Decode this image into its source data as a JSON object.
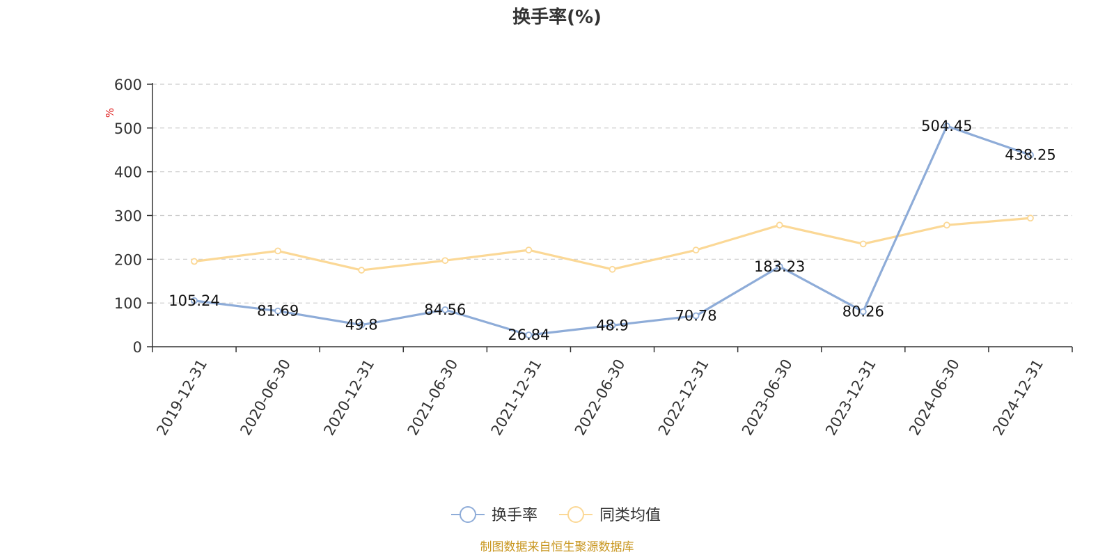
{
  "chart_data": {
    "type": "line",
    "title": "换手率(%)",
    "ylabel_unit": "%",
    "ylim": [
      0,
      600
    ],
    "yticks": [
      0,
      100,
      200,
      300,
      400,
      500,
      600
    ],
    "x": [
      "2019-12-31",
      "2020-06-30",
      "2020-12-31",
      "2021-06-30",
      "2021-12-31",
      "2022-06-30",
      "2022-12-31",
      "2023-06-30",
      "2023-12-31",
      "2024-06-30",
      "2024-12-31"
    ],
    "series": [
      {
        "name": "换手率",
        "color": "#8EACD8",
        "values": [
          105.24,
          81.69,
          49.8,
          84.56,
          26.84,
          48.9,
          70.78,
          183.23,
          80.26,
          504.45,
          438.25
        ],
        "labels": [
          "105.24",
          "81.69",
          "49.8",
          "84.56",
          "26.84",
          "48.9",
          "70.78",
          "183.23",
          "80.26",
          "504.45",
          "438.25"
        ]
      },
      {
        "name": "同类均值",
        "color": "#FBD896",
        "values": [
          195,
          219,
          175,
          197,
          221,
          177,
          221,
          278,
          235,
          278,
          294
        ]
      }
    ],
    "grid": "horizontal dashed",
    "legend_position": "bottom-center"
  },
  "colors": {
    "unit": "#E02020",
    "source": "#C8961E",
    "axis": "#333333",
    "grid": "#CCCCCC"
  },
  "source_note": "制图数据来自恒生聚源数据库"
}
